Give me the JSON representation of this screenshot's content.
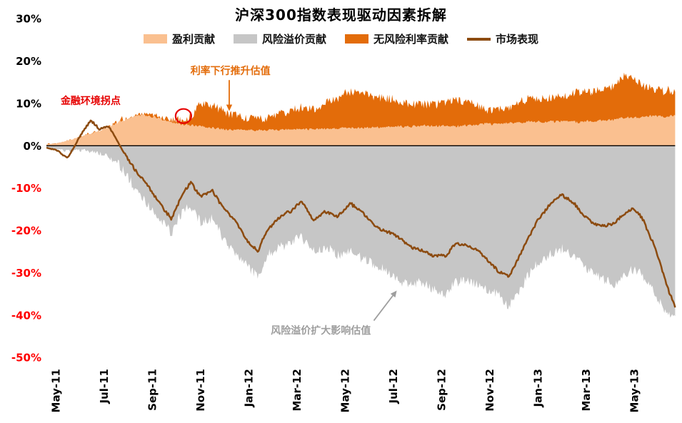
{
  "title": "沪深300指数表现驱动因素拆解",
  "legend": [
    {
      "label": "盈利贡献",
      "color": "#FAC090",
      "type": "area"
    },
    {
      "label": "风险溢价贡献",
      "color": "#C6C6C6",
      "type": "area"
    },
    {
      "label": "无风险利率贡献",
      "color": "#E36C0A",
      "type": "area"
    },
    {
      "label": "市场表现",
      "color": "#8C4B10",
      "type": "line"
    }
  ],
  "y_axis": {
    "labels": [
      "30%",
      "20%",
      "10%",
      "0%",
      "-10%",
      "-20%",
      "-30%",
      "-40%",
      "-50%"
    ],
    "values": [
      30,
      20,
      10,
      0,
      -10,
      -20,
      -30,
      -40,
      -50
    ],
    "positive_color": "#000000",
    "negative_color": "#FF0000"
  },
  "x_axis": {
    "labels": [
      "May-11",
      "Jul-11",
      "Sep-11",
      "Nov-11",
      "Jan-12",
      "Mar-12",
      "May-12",
      "Jul-12",
      "Sep-12",
      "Nov-12",
      "Jan-13",
      "Mar-13",
      "May-13"
    ],
    "months": [
      0,
      2,
      4,
      6,
      8,
      10,
      12,
      14,
      16,
      18,
      20,
      22,
      24
    ]
  },
  "annotations": [
    {
      "id": "financial-turning-point",
      "text": "金融环境拐点",
      "color": "#E60000",
      "type": "circle",
      "at": {
        "m": 5.3,
        "v": 7
      },
      "radius": {
        "rx": 11,
        "ry": 10
      },
      "label_at": {
        "m": 1.45,
        "v": 10.6
      }
    },
    {
      "id": "rate-decline-boosts-valuation",
      "text": "利率下行推升估值",
      "color": "#E36C0A",
      "type": "arrow",
      "from": {
        "m": 7.2,
        "v": 15.5
      },
      "to": {
        "m": 7.2,
        "v": 8.2
      },
      "label_at": {
        "m": 7.25,
        "v": 17.8
      }
    },
    {
      "id": "risk-premium-widening-drags-valuation",
      "text": "风险溢价扩大影响估值",
      "color": "#9E9E9E",
      "type": "arrow",
      "from": {
        "m": 13.2,
        "v": -41.3
      },
      "to": {
        "m": 14.15,
        "v": -34.2
      },
      "label_at": {
        "m": 11.0,
        "v": -43.5
      }
    }
  ],
  "chart_data": {
    "type": "area",
    "stacked": true,
    "title": "沪深300指数表现驱动因素拆解",
    "x_unit": "months since 2011-05",
    "xlim_months": [
      -0.385,
      25.7
    ],
    "ylim": [
      -50,
      30
    ],
    "grid": false,
    "legend_position": "top",
    "x": [
      -0.385,
      0,
      0.5,
      1,
      1.45,
      1.8,
      2.2,
      2.6,
      3,
      3.5,
      4,
      4.4,
      4.8,
      5.2,
      5.6,
      6,
      6.5,
      7,
      7.5,
      8,
      8.4,
      8.8,
      9.3,
      9.8,
      10.2,
      10.7,
      11.2,
      11.7,
      12.2,
      12.7,
      13.2,
      13.7,
      14.2,
      14.7,
      15.2,
      15.7,
      16.2,
      16.6,
      17,
      17.5,
      18,
      18.4,
      18.8,
      19.2,
      19.6,
      20,
      20.5,
      21,
      21.4,
      21.8,
      22.2,
      22.7,
      23.2,
      23.6,
      24,
      24.4,
      24.8,
      25.1,
      25.35,
      25.7
    ],
    "series": [
      {
        "name": "盈利贡献",
        "type": "area",
        "stack": "positive",
        "color": "#FAC090",
        "values": [
          0.3,
          0.5,
          1.2,
          2,
          3,
          3.5,
          4.5,
          5.5,
          6.5,
          7.5,
          7,
          6.5,
          6,
          5.5,
          5.2,
          5,
          4.8,
          4.5,
          4.3,
          4.2,
          4.2,
          4.3,
          4.3,
          4.4,
          4.5,
          4.5,
          4.6,
          4.7,
          4.8,
          4.8,
          4.9,
          4.9,
          5,
          5,
          5,
          5,
          5,
          5,
          5,
          5,
          5,
          5,
          5.1,
          5.2,
          5.3,
          5.4,
          5.5,
          5.6,
          5.6,
          5.7,
          5.8,
          5.9,
          6,
          6.1,
          6.2,
          6.3,
          6.3,
          6.4,
          6.4,
          6.5
        ]
      },
      {
        "name": "无风险利率贡献",
        "type": "area",
        "stack": "positive",
        "color": "#E36C0A",
        "values": [
          0.1,
          0.1,
          0.3,
          0.4,
          0.5,
          0.5,
          0.5,
          0.4,
          0.4,
          0.5,
          0.8,
          1.0,
          1.2,
          1.5,
          2.5,
          5.5,
          5.0,
          4.0,
          3.7,
          3.3,
          3.0,
          3.5,
          4.2,
          4.6,
          5.0,
          4.5,
          5.4,
          6.3,
          7.7,
          7.2,
          6.1,
          5.6,
          5.5,
          5.0,
          4.5,
          4.2,
          4.5,
          4.8,
          4.5,
          3.8,
          3.0,
          2.5,
          2.9,
          3.8,
          4.7,
          5.1,
          5.5,
          5.9,
          6.4,
          6.8,
          6.7,
          7.1,
          8.0,
          10.0,
          8.8,
          7.7,
          7.2,
          6.6,
          6.6,
          6.0
        ]
      },
      {
        "name": "风险溢价贡献",
        "type": "area",
        "stack": "negative",
        "color": "#C6C6C6",
        "values": [
          -0.5,
          -0.8,
          -1.5,
          -1.2,
          -1.5,
          -2,
          -3,
          -4.5,
          -8,
          -12,
          -16,
          -18,
          -21,
          -17,
          -15.5,
          -19,
          -18,
          -23,
          -27,
          -30,
          -32,
          -27,
          -25,
          -24,
          -22.5,
          -26,
          -25,
          -26.5,
          -25,
          -27,
          -29,
          -30.5,
          -33,
          -34,
          -33.5,
          -35,
          -36,
          -33,
          -32.5,
          -33.5,
          -35,
          -36.5,
          -38.5,
          -35,
          -31,
          -28.5,
          -27,
          -25.5,
          -27,
          -29,
          -30.5,
          -32,
          -33.5,
          -31.5,
          -30,
          -32,
          -35,
          -38,
          -40,
          -41
        ]
      },
      {
        "name": "市场表现",
        "type": "line",
        "color": "#8C4B10",
        "values": [
          -0.5,
          -1,
          -3,
          2,
          5.5,
          3.5,
          4,
          0.5,
          -4,
          -8,
          -12,
          -15,
          -18,
          -13,
          -9.5,
          -13,
          -11.5,
          -15.5,
          -19,
          -23,
          -25,
          -20,
          -17,
          -15,
          -13,
          -17.5,
          -15.5,
          -16.5,
          -12.5,
          -15,
          -18,
          -20,
          -21.5,
          -23,
          -24,
          -25.5,
          -26,
          -22.5,
          -23,
          -24.5,
          -27,
          -29,
          -30.5,
          -26.5,
          -22,
          -18,
          -14.5,
          -12,
          -14,
          -16.5,
          -18.5,
          -20,
          -19,
          -16.5,
          -15,
          -18,
          -23,
          -28,
          -33,
          -38
        ]
      }
    ]
  }
}
